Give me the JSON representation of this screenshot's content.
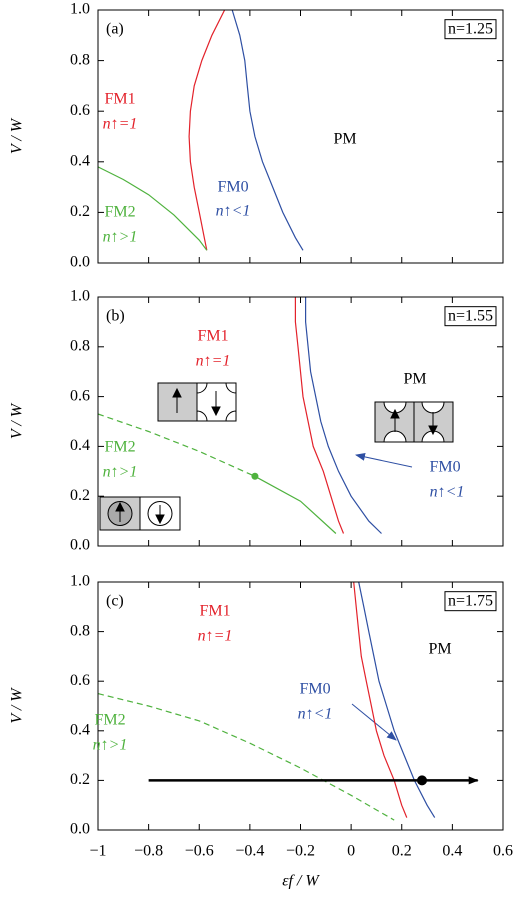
{
  "chart_data": [
    {
      "type": "line",
      "panel_label": "(a)",
      "box_label": "n=1.25",
      "ylabel": "V / W",
      "xlim": [
        -1,
        0.6
      ],
      "ylim": [
        0,
        1
      ],
      "xticks": [
        {
          "value": -1,
          "label": "−1"
        },
        {
          "value": -0.8,
          "label": "−0.8"
        },
        {
          "value": -0.6,
          "label": "−0.6"
        },
        {
          "value": -0.4,
          "label": "−0.4"
        },
        {
          "value": -0.2,
          "label": "−0.2"
        },
        0,
        0.2,
        0.4,
        0.6
      ],
      "yticks": [
        {
          "value": 0,
          "label": "0.0"
        },
        0.2,
        0.4,
        0.6,
        0.8,
        {
          "value": 1,
          "label": "1.0"
        }
      ],
      "show_xticklabels": false,
      "series": [
        {
          "color": "#e3222b",
          "dashed": false,
          "x": [
            -0.5,
            -0.55,
            -0.59,
            -0.62,
            -0.635,
            -0.64,
            -0.635,
            -0.62,
            -0.6,
            -0.58,
            -0.57
          ],
          "values": [
            1.0,
            0.9,
            0.8,
            0.7,
            0.6,
            0.5,
            0.4,
            0.3,
            0.2,
            0.1,
            0.05
          ]
        },
        {
          "color": "#2e4fa3",
          "dashed": false,
          "x": [
            -0.47,
            -0.44,
            -0.42,
            -0.41,
            -0.4,
            -0.38,
            -0.35,
            -0.31,
            -0.27,
            -0.22,
            -0.19
          ],
          "values": [
            1.0,
            0.9,
            0.8,
            0.7,
            0.6,
            0.5,
            0.4,
            0.3,
            0.2,
            0.1,
            0.05
          ]
        },
        {
          "color": "#4fb23e",
          "dashed": false,
          "x": [
            -1,
            -0.9,
            -0.8,
            -0.7,
            -0.6,
            -0.57
          ],
          "values": [
            0.38,
            0.33,
            0.27,
            0.19,
            0.09,
            0.05
          ]
        }
      ],
      "annotations": [
        {
          "text": "FM1",
          "color": "#e3222b"
        },
        {
          "text": "n↑=1",
          "color": "#e3222b"
        },
        {
          "text": "PM",
          "color": "#000000"
        },
        {
          "text": "FM0",
          "color": "#2e4fa3"
        },
        {
          "text": "n↑<1",
          "color": "#2e4fa3"
        },
        {
          "text": "FM2",
          "color": "#4fb23e"
        },
        {
          "text": "n↑>1",
          "color": "#4fb23e"
        }
      ]
    },
    {
      "type": "line",
      "panel_label": "(b)",
      "box_label": "n=1.55",
      "ylabel": "V / W",
      "xlim": [
        -1,
        0.6
      ],
      "ylim": [
        0,
        1
      ],
      "xticks": [
        {
          "value": -1,
          "label": "−1"
        },
        {
          "value": -0.8,
          "label": "−0.8"
        },
        {
          "value": -0.6,
          "label": "−0.6"
        },
        {
          "value": -0.4,
          "label": "−0.4"
        },
        {
          "value": -0.2,
          "label": "−0.2"
        },
        0,
        0.2,
        0.4,
        0.6
      ],
      "yticks": [
        {
          "value": 0,
          "label": "0.0"
        },
        0.2,
        0.4,
        0.6,
        0.8,
        {
          "value": 1,
          "label": "1.0"
        }
      ],
      "show_xticklabels": false,
      "series": [
        {
          "color": "#e3222b",
          "dashed": false,
          "x": [
            -0.22,
            -0.22,
            -0.21,
            -0.2,
            -0.19,
            -0.17,
            -0.15,
            -0.11,
            -0.08,
            -0.05,
            -0.03
          ],
          "values": [
            1.0,
            0.9,
            0.8,
            0.7,
            0.6,
            0.5,
            0.4,
            0.3,
            0.2,
            0.1,
            0.05
          ]
        },
        {
          "color": "#2e4fa3",
          "dashed": false,
          "x": [
            -0.18,
            -0.18,
            -0.17,
            -0.16,
            -0.14,
            -0.12,
            -0.09,
            -0.05,
            0.0,
            0.07,
            0.12
          ],
          "values": [
            1.0,
            0.9,
            0.8,
            0.7,
            0.6,
            0.5,
            0.4,
            0.3,
            0.2,
            0.1,
            0.05
          ]
        },
        {
          "color": "#4fb23e",
          "dashed": true,
          "x": [
            -1,
            -0.8,
            -0.6,
            -0.38
          ],
          "values": [
            0.53,
            0.46,
            0.38,
            0.28
          ]
        },
        {
          "color": "#4fb23e",
          "dashed": false,
          "x": [
            -0.38,
            -0.2,
            -0.06
          ],
          "values": [
            0.28,
            0.18,
            0.05
          ]
        }
      ],
      "points": [
        {
          "color": "#4fb23e",
          "x": -0.38,
          "y": 0.28
        }
      ],
      "annotations": [
        {
          "text": "FM1",
          "color": "#e3222b"
        },
        {
          "text": "n↑=1",
          "color": "#e3222b"
        },
        {
          "text": "PM",
          "color": "#000000"
        },
        {
          "text": "FM0",
          "color": "#2e4fa3"
        },
        {
          "text": "n↑<1",
          "color": "#2e4fa3"
        },
        {
          "text": "FM2",
          "color": "#4fb23e"
        },
        {
          "text": "n↑>1",
          "color": "#4fb23e"
        }
      ]
    },
    {
      "type": "line",
      "panel_label": "(c)",
      "box_label": "n=1.75",
      "ylabel": "V / W",
      "xlabel": "εf / W",
      "xlim": [
        -1,
        0.6
      ],
      "ylim": [
        0,
        1
      ],
      "xticks": [
        {
          "value": -1,
          "label": "−1"
        },
        {
          "value": -0.8,
          "label": "−0.8"
        },
        {
          "value": -0.6,
          "label": "−0.6"
        },
        {
          "value": -0.4,
          "label": "−0.4"
        },
        {
          "value": -0.2,
          "label": "−0.2"
        },
        0,
        0.2,
        0.4,
        0.6
      ],
      "yticks": [
        {
          "value": 0,
          "label": "0.0"
        },
        0.2,
        0.4,
        0.6,
        0.8,
        {
          "value": 1,
          "label": "1.0"
        }
      ],
      "show_xticklabels": true,
      "series": [
        {
          "color": "#e3222b",
          "dashed": false,
          "x": [
            0.01,
            0.02,
            0.03,
            0.04,
            0.06,
            0.08,
            0.1,
            0.13,
            0.17,
            0.2,
            0.22
          ],
          "values": [
            1.0,
            0.9,
            0.8,
            0.7,
            0.6,
            0.5,
            0.4,
            0.3,
            0.2,
            0.1,
            0.05
          ]
        },
        {
          "color": "#2e4fa3",
          "dashed": false,
          "x": [
            0.03,
            0.05,
            0.07,
            0.09,
            0.11,
            0.14,
            0.17,
            0.21,
            0.25,
            0.3,
            0.33
          ],
          "values": [
            1.0,
            0.9,
            0.8,
            0.7,
            0.6,
            0.5,
            0.4,
            0.3,
            0.2,
            0.1,
            0.05
          ]
        },
        {
          "color": "#4fb23e",
          "dashed": true,
          "x": [
            -1,
            -0.8,
            -0.6,
            -0.4,
            -0.2,
            0,
            0.17
          ],
          "values": [
            0.55,
            0.5,
            0.44,
            0.35,
            0.25,
            0.14,
            0.04
          ]
        }
      ],
      "arrows": [
        {
          "color": "#000000",
          "x": [
            -0.8,
            0.5
          ],
          "y": [
            0.2,
            0.2
          ]
        }
      ],
      "points": [
        {
          "color": "#000000",
          "x": 0.28,
          "y": 0.2
        }
      ],
      "annotations": [
        {
          "text": "FM1",
          "color": "#e3222b"
        },
        {
          "text": "n↑=1",
          "color": "#e3222b"
        },
        {
          "text": "PM",
          "color": "#000000"
        },
        {
          "text": "FM0",
          "color": "#2e4fa3"
        },
        {
          "text": "n↑<1",
          "color": "#2e4fa3"
        },
        {
          "text": "FM2",
          "color": "#4fb23e"
        },
        {
          "text": "n↑>1",
          "color": "#4fb23e"
        }
      ]
    }
  ]
}
